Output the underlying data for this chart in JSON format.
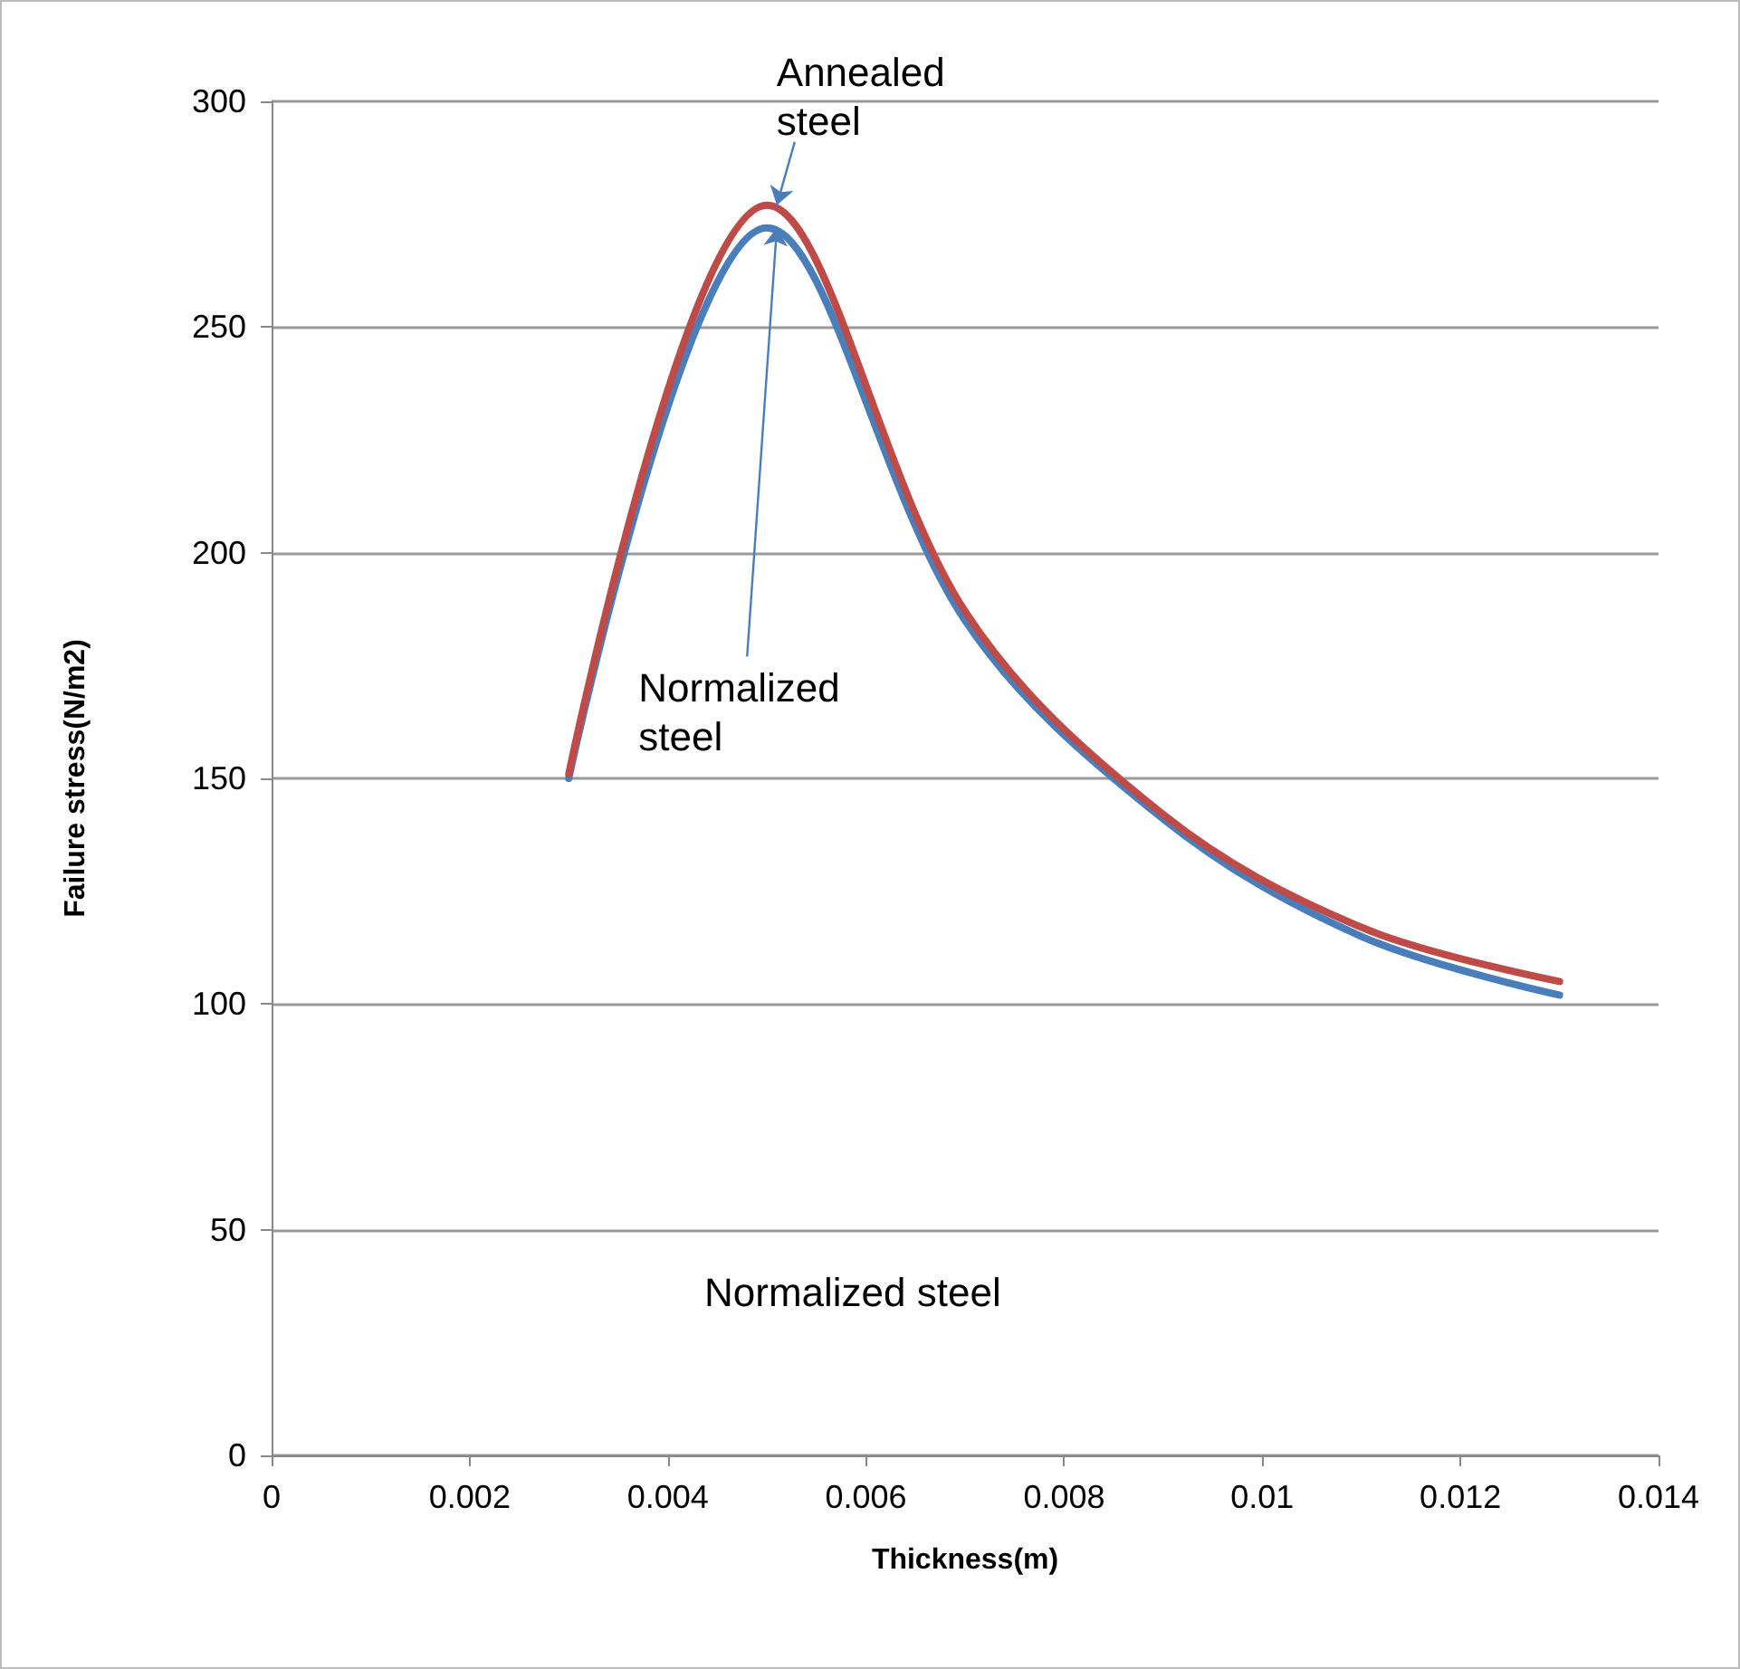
{
  "chart_data": {
    "type": "line",
    "xlabel": "Thickness(m)",
    "ylabel": "Failure stress(N/m2)",
    "x": [
      0.003,
      0.005,
      0.007,
      0.009,
      0.011,
      0.013
    ],
    "series": [
      {
        "color": "#4a7ebb",
        "values": [
          150,
          272,
          185,
          141,
          115,
          102
        ]
      },
      {
        "color": "#be4b48",
        "values": [
          151,
          277,
          187,
          142,
          117,
          105
        ]
      }
    ],
    "xlim": [
      0,
      0.014
    ],
    "xticks": [
      0,
      0.002,
      0.004,
      0.006,
      0.008,
      0.01,
      0.012,
      0.014
    ],
    "ylim": [
      0,
      300
    ],
    "yticks": [
      0,
      50,
      100,
      150,
      200,
      250,
      300
    ],
    "grid": "y",
    "marker": "none",
    "line_style": "solid",
    "annotations": [
      {
        "text": "Annealed\nsteel",
        "x": 0.0051,
        "y": 277
      },
      {
        "text": "Normalized\nsteel",
        "x": 0.0051,
        "y": 272
      },
      "Normalized steel"
    ]
  }
}
